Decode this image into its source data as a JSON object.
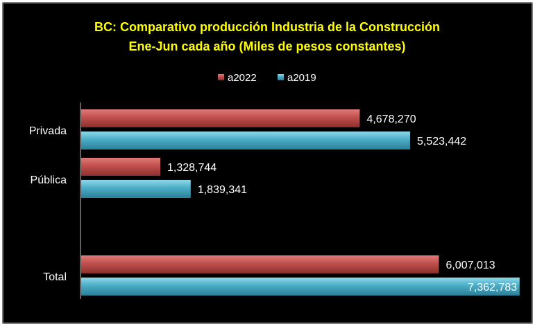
{
  "chart_data": {
    "type": "bar",
    "orientation": "horizontal",
    "title": "BC: Comparativo producción Industria de la Construcción",
    "subtitle": "Ene-Jun cada año (Miles de pesos constantes)",
    "categories": [
      "Privada",
      "Pública",
      "",
      "Total"
    ],
    "series": [
      {
        "name": "a2022",
        "color": "#c0504d",
        "values": [
          4678270,
          1328744,
          null,
          6007013
        ],
        "labels": [
          "4,678,270",
          "1,328,744",
          "",
          "6,007,013"
        ]
      },
      {
        "name": "a2019",
        "color": "#4bacc6",
        "values": [
          5523442,
          1839341,
          null,
          7362783
        ],
        "labels": [
          "5,523,442",
          "1,839,341",
          "",
          "7,362,783"
        ]
      }
    ],
    "legend_position": "top",
    "xlim": [
      0,
      7400000
    ],
    "grid": false,
    "background": "#000000",
    "title_color": "#ffff00"
  }
}
